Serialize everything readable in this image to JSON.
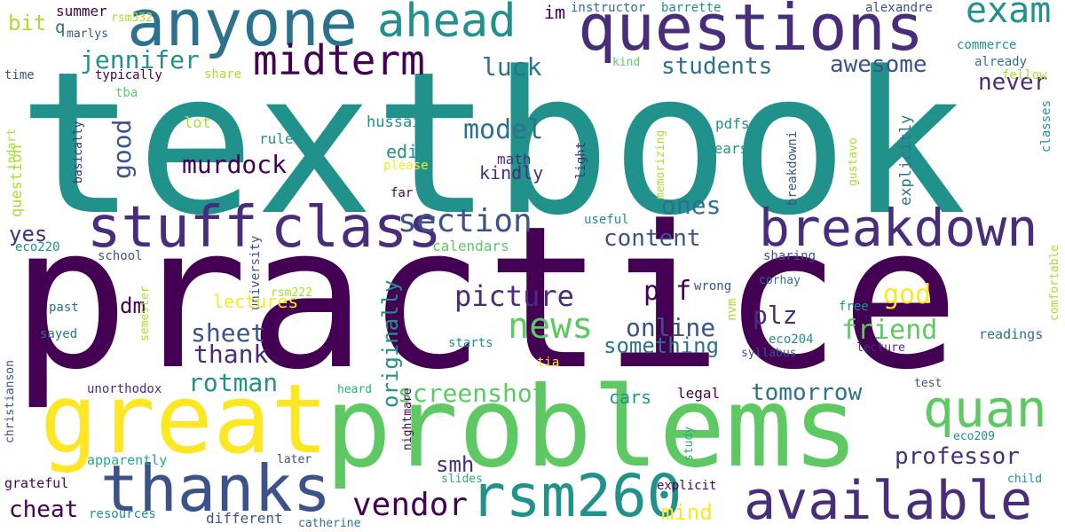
{
  "words": [
    "textbook",
    "practice",
    "problems",
    "great",
    "questions",
    "anyone",
    "thanks",
    "stuff",
    "class",
    "breakdown",
    "rsm260",
    "available",
    "quan",
    "ahead",
    "midterm",
    "exam",
    "section",
    "vendor",
    "jennifer",
    "students",
    "awesome",
    "never",
    "luck",
    "model",
    "good",
    "murdock",
    "content",
    "ones",
    "news",
    "picture",
    "pdf",
    "plz",
    "god",
    "friend",
    "online",
    "something",
    "sheet",
    "thank",
    "rotman",
    "screenshot",
    "tomorrow",
    "professor",
    "smh",
    "cheat",
    "mind",
    "dm",
    "yes",
    "originally",
    "edit",
    "kindly",
    "math",
    "hussain",
    "rules",
    "question",
    "lot",
    "bit",
    "q",
    "summer",
    "rsm332",
    "marlys",
    "im",
    "instructor",
    "barrette",
    "alexandre",
    "commerce",
    "already",
    "time",
    "typically",
    "tba",
    "share",
    "kind",
    "fellow",
    "classes",
    "indart",
    "basically",
    "please",
    "gustavo",
    "breakdowni",
    "explicitly",
    "pdfs",
    "years",
    "memorizing",
    "light",
    "far",
    "useful",
    "calendars",
    "eco220",
    "school",
    "university",
    "sharing",
    "comfortable",
    "corhay",
    "wrong",
    "nvm",
    "free",
    "readings",
    "lectures",
    "rsm222",
    "past",
    "sayed",
    "semester",
    "christianson",
    "starts",
    "tia",
    "eco204",
    "syllabus",
    "lecture",
    "unorthodox",
    "heard",
    "legal",
    "cars",
    "test",
    "nightmare",
    "eco209",
    "study",
    "apparently",
    "later",
    "grateful",
    "slides",
    "explicit",
    "child",
    "resources",
    "different",
    "catherine"
  ]
}
